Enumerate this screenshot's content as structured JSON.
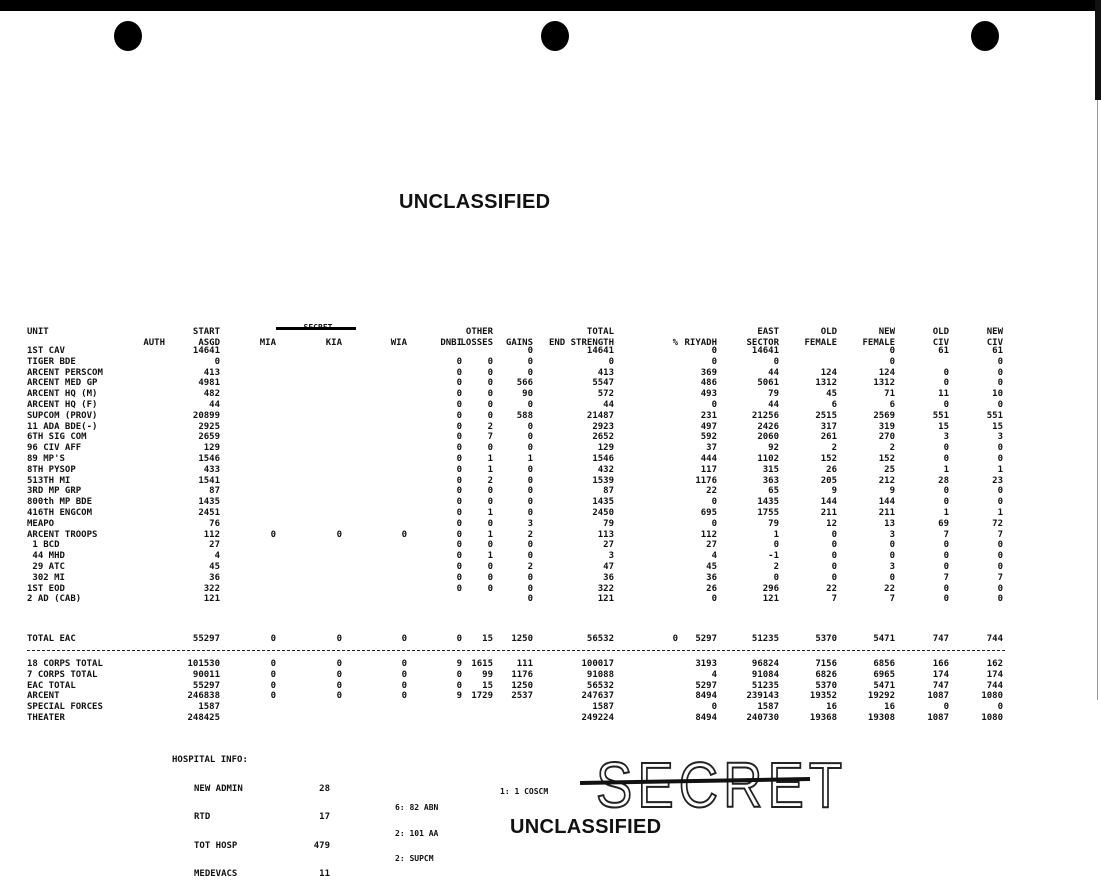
{
  "classification_top": "UNCLASSIFIED",
  "classification_bottom": "UNCLASSIFIED",
  "secret_header": "SECRET",
  "secret_stamp": "SECRET",
  "headers_line1": [
    "UNIT",
    "",
    "START",
    "",
    "",
    "",
    "",
    "OTHER",
    "",
    "TOTAL",
    "",
    "",
    "EAST",
    "OLD",
    "NEW",
    "OLD",
    "NEW"
  ],
  "headers_line2": [
    "",
    "AUTH",
    "ASGD",
    "MIA",
    "KIA",
    "WIA",
    "DNBI",
    "LOSSES",
    "GAINS",
    "END STRENGTH",
    "%",
    "RIYADH",
    "SECTOR",
    "FEMALE",
    "FEMALE",
    "CIV",
    "CIV"
  ],
  "rows": [
    [
      "1ST CAV",
      "",
      "14641",
      "",
      "",
      "",
      "",
      "",
      "0",
      "14641",
      "",
      "0",
      "14641",
      "",
      "0",
      "61",
      "61"
    ],
    [
      "TIGER BDE",
      "",
      "0",
      "",
      "",
      "",
      "0",
      "0",
      "0",
      "0",
      "",
      "0",
      "0",
      "",
      "0",
      "",
      "0"
    ],
    [
      "ARCENT PERSCOM",
      "",
      "413",
      "",
      "",
      "",
      "0",
      "0",
      "0",
      "413",
      "",
      "369",
      "44",
      "124",
      "124",
      "0",
      "0"
    ],
    [
      "ARCENT MED GP",
      "",
      "4981",
      "",
      "",
      "",
      "0",
      "0",
      "566",
      "5547",
      "",
      "486",
      "5061",
      "1312",
      "1312",
      "0",
      "0"
    ],
    [
      "ARCENT HQ (M)",
      "",
      "482",
      "",
      "",
      "",
      "0",
      "0",
      "90",
      "572",
      "",
      "493",
      "79",
      "45",
      "71",
      "11",
      "10"
    ],
    [
      "ARCENT HQ (F)",
      "",
      "44",
      "",
      "",
      "",
      "0",
      "0",
      "0",
      "44",
      "",
      "0",
      "44",
      "6",
      "6",
      "0",
      "0"
    ],
    [
      "SUPCOM (PROV)",
      "",
      "20899",
      "",
      "",
      "",
      "0",
      "0",
      "588",
      "21487",
      "",
      "231",
      "21256",
      "2515",
      "2569",
      "551",
      "551"
    ],
    [
      "11 ADA BDE(-)",
      "",
      "2925",
      "",
      "",
      "",
      "0",
      "2",
      "0",
      "2923",
      "",
      "497",
      "2426",
      "317",
      "319",
      "15",
      "15"
    ],
    [
      "6TH SIG COM",
      "",
      "2659",
      "",
      "",
      "",
      "0",
      "7",
      "0",
      "2652",
      "",
      "592",
      "2060",
      "261",
      "270",
      "3",
      "3"
    ],
    [
      "96 CIV AFF",
      "",
      "129",
      "",
      "",
      "",
      "0",
      "0",
      "0",
      "129",
      "",
      "37",
      "92",
      "2",
      "2",
      "0",
      "0"
    ],
    [
      "89 MP'S",
      "",
      "1546",
      "",
      "",
      "",
      "0",
      "1",
      "1",
      "1546",
      "",
      "444",
      "1102",
      "152",
      "152",
      "0",
      "0"
    ],
    [
      "8TH PYSOP",
      "",
      "433",
      "",
      "",
      "",
      "0",
      "1",
      "0",
      "432",
      "",
      "117",
      "315",
      "26",
      "25",
      "1",
      "1"
    ],
    [
      "513TH MI",
      "",
      "1541",
      "",
      "",
      "",
      "0",
      "2",
      "0",
      "1539",
      "",
      "1176",
      "363",
      "205",
      "212",
      "28",
      "23"
    ],
    [
      "3RD MP GRP",
      "",
      "87",
      "",
      "",
      "",
      "0",
      "0",
      "0",
      "87",
      "",
      "22",
      "65",
      "9",
      "9",
      "0",
      "0"
    ],
    [
      "800th MP BDE",
      "",
      "1435",
      "",
      "",
      "",
      "0",
      "0",
      "0",
      "1435",
      "",
      "0",
      "1435",
      "144",
      "144",
      "0",
      "0"
    ],
    [
      "416TH ENGCOM",
      "",
      "2451",
      "",
      "",
      "",
      "0",
      "1",
      "0",
      "2450",
      "",
      "695",
      "1755",
      "211",
      "211",
      "1",
      "1"
    ],
    [
      "MEAPO",
      "",
      "76",
      "",
      "",
      "",
      "0",
      "0",
      "3",
      "79",
      "",
      "0",
      "79",
      "12",
      "13",
      "69",
      "72"
    ],
    [
      "ARCENT TROOPS",
      "",
      "112",
      "0",
      "0",
      "0",
      "0",
      "1",
      "2",
      "113",
      "",
      "112",
      "1",
      "0",
      "3",
      "7",
      "7"
    ],
    [
      " 1 BCD",
      "",
      "27",
      "",
      "",
      "",
      "0",
      "0",
      "0",
      "27",
      "",
      "27",
      "0",
      "0",
      "0",
      "0",
      "0"
    ],
    [
      " 44 MHD",
      "",
      "4",
      "",
      "",
      "",
      "0",
      "1",
      "0",
      "3",
      "",
      "4",
      "-1",
      "0",
      "0",
      "0",
      "0"
    ],
    [
      " 29 ATC",
      "",
      "45",
      "",
      "",
      "",
      "0",
      "0",
      "2",
      "47",
      "",
      "45",
      "2",
      "0",
      "3",
      "0",
      "0"
    ],
    [
      " 302 MI",
      "",
      "36",
      "",
      "",
      "",
      "0",
      "0",
      "0",
      "36",
      "",
      "36",
      "0",
      "0",
      "0",
      "7",
      "7"
    ],
    [
      "1ST EOD",
      "",
      "322",
      "",
      "",
      "",
      "0",
      "0",
      "0",
      "322",
      "",
      "26",
      "296",
      "22",
      "22",
      "0",
      "0"
    ],
    [
      "2 AD (CAB)",
      "",
      "121",
      "",
      "",
      "",
      "",
      "",
      "0",
      "121",
      "",
      "0",
      "121",
      "7",
      "7",
      "0",
      "0"
    ]
  ],
  "total_eac": [
    "TOTAL EAC",
    "",
    "55297",
    "0",
    "0",
    "0",
    "0",
    "15",
    "1250",
    "56532",
    "0",
    "5297",
    "51235",
    "5370",
    "5471",
    "747",
    "744"
  ],
  "summary_rows": [
    [
      "18 CORPS TOTAL",
      "",
      "101530",
      "0",
      "0",
      "0",
      "9",
      "1615",
      "111",
      "100017",
      "",
      "3193",
      "96824",
      "7156",
      "6856",
      "166",
      "162"
    ],
    [
      "7 CORPS TOTAL",
      "",
      "90011",
      "0",
      "0",
      "0",
      "0",
      "99",
      "1176",
      "91088",
      "",
      "4",
      "91084",
      "6826",
      "6965",
      "174",
      "174"
    ],
    [
      "EAC TOTAL",
      "",
      "55297",
      "0",
      "0",
      "0",
      "0",
      "15",
      "1250",
      "56532",
      "",
      "5297",
      "51235",
      "5370",
      "5471",
      "747",
      "744"
    ],
    [
      "ARCENT",
      "",
      "246838",
      "0",
      "0",
      "0",
      "9",
      "1729",
      "2537",
      "247637",
      "",
      "8494",
      "239143",
      "19352",
      "19292",
      "1087",
      "1080"
    ],
    [
      "SPECIAL FORCES",
      "",
      "1587",
      "",
      "",
      "",
      "",
      "",
      "",
      "1587",
      "",
      "0",
      "1587",
      "16",
      "16",
      "0",
      "0"
    ],
    [
      "THEATER",
      "",
      "248425",
      "",
      "",
      "",
      "",
      "",
      "",
      "249224",
      "",
      "8494",
      "240730",
      "19368",
      "19308",
      "1087",
      "1080"
    ]
  ],
  "hospital": {
    "title": "HOSPITAL INFO:",
    "items": [
      {
        "label": "NEW ADMIN",
        "value": "28"
      },
      {
        "label": "RTD",
        "value": "17"
      },
      {
        "label": "TOT HOSP",
        "value": "479"
      },
      {
        "label": "MEDEVACS",
        "value": "11"
      }
    ]
  },
  "notes": [
    "6: 82 ABN",
    "2: 101 AA",
    "2: SUPCM"
  ],
  "note_right": "1: 1 COSCM"
}
